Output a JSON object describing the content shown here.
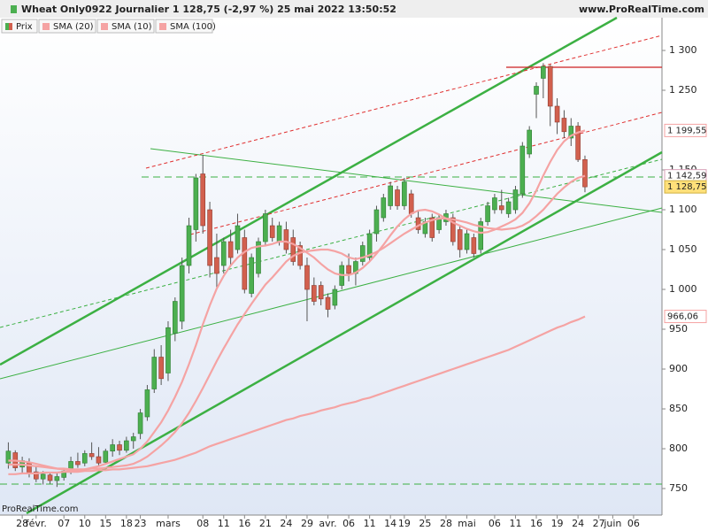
{
  "chart_data": {
    "type": "candlestick",
    "title": "Wheat Only0922 Journalier 1 128,75 (-2,97 %) 25 mai 2022 13:50:52",
    "source": "www.ProRealTime.com",
    "watermark": "ProRealTime.com",
    "categories": [
      null,
      null,
      "28",
      null,
      "févr.",
      null,
      null,
      null,
      "07",
      null,
      null,
      "10",
      null,
      null,
      "15",
      null,
      null,
      "18",
      null,
      "23",
      null,
      null,
      null,
      "mars",
      null,
      null,
      null,
      null,
      "08",
      null,
      null,
      "11",
      null,
      null,
      "16",
      null,
      null,
      "21",
      null,
      null,
      "24",
      null,
      null,
      "29",
      null,
      null,
      "avr.",
      null,
      null,
      "06",
      null,
      null,
      "11",
      null,
      null,
      "14",
      null,
      "19",
      null,
      null,
      "25",
      null,
      null,
      "28",
      null,
      null,
      "mai",
      null,
      null,
      null,
      "06",
      null,
      null,
      "11",
      null,
      null,
      "16",
      null,
      null,
      "19",
      null,
      null,
      "24",
      null,
      null,
      "27",
      null,
      "juin",
      null,
      null,
      "06",
      null
    ],
    "series": [
      {
        "name": "Prix",
        "up_color": "#4caf50",
        "down_color": "#d2604e",
        "open": [
          782,
          795,
          777,
          783,
          771,
          762,
          767,
          760,
          764,
          772,
          784,
          782,
          794,
          790,
          783,
          797,
          805,
          798,
          810,
          819,
          840,
          875,
          915,
          895,
          945,
          960,
          1030,
          1075,
          1145,
          1100,
          1040,
          1030,
          1060,
          1050,
          1065,
          995,
          1020,
          1060,
          1080,
          1060,
          1075,
          1065,
          1055,
          1030,
          1005,
          1005,
          990,
          980,
          1005,
          1030,
          1020,
          1035,
          1040,
          1070,
          1090,
          1105,
          1125,
          1105,
          1120,
          1090,
          1070,
          1090,
          1075,
          1085,
          1090,
          1075,
          1050,
          1065,
          1050,
          1085,
          1100,
          1105,
          1095,
          1100,
          1120,
          1170,
          1245,
          1265,
          1280,
          1230,
          1215,
          1190,
          1205,
          1163,
          null,
          null,
          null,
          null,
          null,
          null,
          null,
          null
        ],
        "high": [
          808,
          798,
          790,
          788,
          778,
          772,
          770,
          770,
          775,
          790,
          795,
          798,
          808,
          802,
          800,
          812,
          810,
          815,
          820,
          850,
          880,
          925,
          930,
          960,
          990,
          1040,
          1090,
          1145,
          1169,
          1110,
          1070,
          1065,
          1075,
          1095,
          1075,
          1045,
          1065,
          1100,
          1090,
          1085,
          1085,
          1075,
          1060,
          1040,
          1015,
          1010,
          995,
          1005,
          1035,
          1045,
          1040,
          1060,
          1075,
          1105,
          1120,
          1135,
          1130,
          1140,
          1125,
          1100,
          1090,
          1095,
          1095,
          1100,
          1095,
          1080,
          1075,
          1070,
          1090,
          1110,
          1120,
          1125,
          1115,
          1130,
          1185,
          1205,
          1260,
          1284,
          1282,
          1240,
          1225,
          1215,
          1210,
          1168,
          null,
          null,
          null,
          null,
          null,
          null,
          null,
          null
        ],
        "low": [
          775,
          772,
          770,
          764,
          758,
          755,
          756,
          752,
          760,
          768,
          776,
          778,
          786,
          778,
          780,
          790,
          792,
          795,
          800,
          812,
          835,
          870,
          880,
          885,
          935,
          950,
          1020,
          1060,
          1070,
          1015,
          1000,
          1020,
          1030,
          1045,
          995,
          990,
          1015,
          1055,
          1060,
          1055,
          1045,
          1030,
          1025,
          960,
          980,
          980,
          965,
          975,
          1000,
          1010,
          1005,
          1030,
          1035,
          1060,
          1085,
          1100,
          1100,
          1100,
          1090,
          1070,
          1065,
          1060,
          1070,
          1080,
          1055,
          1040,
          1045,
          1040,
          1045,
          1080,
          1095,
          1095,
          1090,
          1095,
          1115,
          1165,
          1215,
          1240,
          1205,
          1195,
          1190,
          1180,
          1160,
          1122,
          null,
          null,
          null,
          null,
          null,
          null,
          null,
          null
        ],
        "close": [
          797,
          776,
          785,
          770,
          762,
          768,
          760,
          765,
          772,
          784,
          780,
          794,
          790,
          782,
          797,
          805,
          798,
          810,
          815,
          845,
          874,
          915,
          888,
          952,
          985,
          1030,
          1080,
          1140,
          1080,
          1030,
          1020,
          1060,
          1040,
          1080,
          1000,
          1040,
          1060,
          1095,
          1065,
          1080,
          1050,
          1035,
          1030,
          1000,
          985,
          988,
          975,
          1000,
          1030,
          1020,
          1035,
          1055,
          1070,
          1100,
          1115,
          1130,
          1105,
          1135,
          1095,
          1075,
          1085,
          1065,
          1090,
          1095,
          1060,
          1050,
          1070,
          1045,
          1085,
          1105,
          1115,
          1100,
          1110,
          1125,
          1180,
          1200,
          1255,
          1280,
          1230,
          1210,
          1198,
          1205,
          1163,
          1128.75,
          null,
          null,
          null,
          null,
          null,
          null,
          null,
          null
        ]
      },
      {
        "name": "SMA (20)",
        "color": "#f5a3a3",
        "values": [
          780,
          780,
          780,
          779,
          778,
          777,
          776,
          775,
          775,
          774,
          774,
          774,
          775,
          775,
          776,
          777,
          778,
          779,
          781,
          785,
          790,
          797,
          804,
          812,
          821,
          832,
          845,
          860,
          876,
          893,
          910,
          926,
          941,
          956,
          969,
          982,
          994,
          1006,
          1015,
          1025,
          1035,
          1042,
          1046,
          1048,
          1049,
          1050,
          1050,
          1048,
          1045,
          1040,
          1038,
          1040,
          1043,
          1047,
          1052,
          1058,
          1064,
          1070,
          1075,
          1080,
          1084,
          1087,
          1089,
          1089,
          1088,
          1086,
          1084,
          1081,
          1079,
          1077,
          1076,
          1075,
          1076,
          1077,
          1080,
          1085,
          1092,
          1100,
          1110,
          1120,
          1128,
          1135,
          1140,
          1142.59,
          null,
          null,
          null,
          null,
          null,
          null,
          null,
          null
        ]
      },
      {
        "name": "SMA (10)",
        "color": "#f5a3a3",
        "values": [
          785,
          785,
          784,
          783,
          781,
          779,
          777,
          775,
          774,
          773,
          773,
          774,
          776,
          778,
          781,
          784,
          787,
          790,
          793,
          800,
          809,
          821,
          833,
          848,
          865,
          884,
          906,
          930,
          956,
          980,
          1001,
          1017,
          1030,
          1040,
          1047,
          1052,
          1054,
          1055,
          1057,
          1060,
          1060,
          1057,
          1052,
          1046,
          1040,
          1032,
          1025,
          1020,
          1018,
          1018,
          1021,
          1027,
          1035,
          1045,
          1056,
          1068,
          1079,
          1088,
          1095,
          1099,
          1100,
          1098,
          1094,
          1089,
          1084,
          1080,
          1076,
          1073,
          1071,
          1072,
          1075,
          1079,
          1083,
          1088,
          1096,
          1108,
          1124,
          1143,
          1160,
          1175,
          1186,
          1193,
          1197,
          1199.55,
          null,
          null,
          null,
          null,
          null,
          null,
          null,
          null
        ]
      },
      {
        "name": "SMA (100)",
        "color": "#f5a3a3",
        "values": [
          768,
          768,
          769,
          769,
          769,
          770,
          770,
          770,
          771,
          771,
          771,
          772,
          772,
          773,
          773,
          774,
          774,
          775,
          776,
          777,
          778,
          780,
          782,
          784,
          786,
          789,
          792,
          795,
          799,
          803,
          806,
          809,
          812,
          815,
          818,
          821,
          824,
          827,
          830,
          833,
          836,
          838,
          841,
          843,
          845,
          848,
          850,
          852,
          855,
          857,
          859,
          862,
          864,
          867,
          870,
          873,
          876,
          879,
          882,
          885,
          888,
          891,
          894,
          897,
          900,
          903,
          906,
          909,
          912,
          915,
          918,
          921,
          924,
          928,
          932,
          936,
          940,
          944,
          948,
          952,
          955,
          959,
          962,
          966.06,
          null,
          null,
          null,
          null,
          null,
          null,
          null,
          null
        ]
      }
    ],
    "ylim": [
      716.7,
      1341.1
    ],
    "yticks": [
      750,
      800,
      850,
      900,
      950,
      {
        "value": 1000,
        "label": "1 000"
      },
      {
        "value": 1050,
        "label": "1 050"
      },
      {
        "value": 1100,
        "label": "1 100"
      },
      {
        "value": 1150,
        "label": "1 150"
      },
      {
        "value": 1250,
        "label": "1 250"
      },
      {
        "value": 1300,
        "label": "1 300"
      }
    ],
    "price_labels": [
      {
        "value": 1199.55,
        "label": "1 199,55",
        "color": "#f5a3a3",
        "background": "#ffffff"
      },
      {
        "value": 1142.59,
        "label": "1 142,59",
        "color": "#d8a0b8",
        "background": "#ffffff"
      },
      {
        "value": 1128.75,
        "label": "1 128,75",
        "color": "#000000",
        "background": "#ffe07a"
      },
      {
        "value": 966.06,
        "label": "966,06",
        "color": "#f5a3a3",
        "background": "#ffffff"
      }
    ]
  }
}
